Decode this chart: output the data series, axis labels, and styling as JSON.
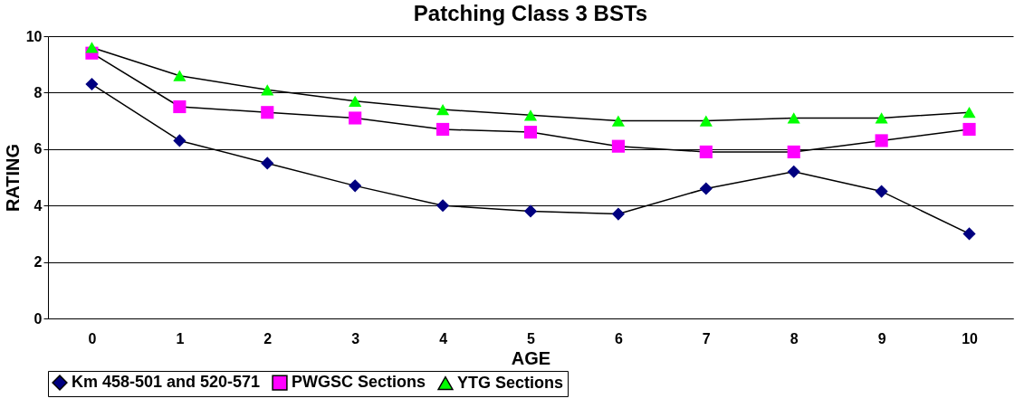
{
  "chart_data": {
    "type": "line",
    "title": "Patching Class 3 BSTs",
    "xlabel": "AGE",
    "ylabel": "RATING",
    "categories": [
      "0",
      "1",
      "2",
      "3",
      "4",
      "5",
      "6",
      "7",
      "8",
      "9",
      "10"
    ],
    "series": [
      {
        "name": "Km 458-501 and 520-571",
        "color": "#000080",
        "marker": "diamond",
        "values": [
          8.3,
          6.3,
          5.5,
          4.7,
          4.0,
          3.8,
          3.7,
          4.6,
          5.2,
          4.5,
          3.0
        ]
      },
      {
        "name": "PWGSC Sections",
        "color": "#ff00ff",
        "marker": "square",
        "values": [
          9.4,
          7.5,
          7.3,
          7.1,
          6.7,
          6.6,
          6.1,
          5.9,
          5.9,
          6.3,
          6.7
        ]
      },
      {
        "name": "YTG Sections",
        "color": "#00ff00",
        "marker": "triangle",
        "values": [
          9.6,
          8.6,
          8.1,
          7.7,
          7.4,
          7.2,
          7.0,
          7.0,
          7.1,
          7.1,
          7.3
        ]
      }
    ],
    "ylim": [
      0,
      10
    ],
    "yticks": [
      0,
      2,
      4,
      6,
      8,
      10
    ],
    "grid": "y",
    "legend": "bottom"
  }
}
